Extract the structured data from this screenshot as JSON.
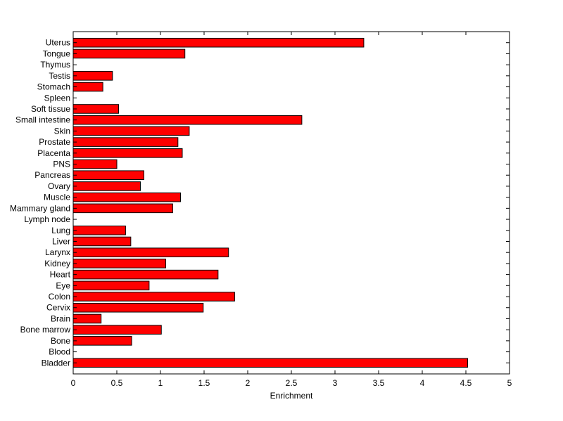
{
  "chart_data": {
    "type": "bar",
    "orientation": "horizontal",
    "title": "",
    "xlabel": "Enrichment",
    "ylabel": "",
    "xlim": [
      0,
      5
    ],
    "xticks": [
      "0",
      "0.5",
      "1",
      "1.5",
      "2",
      "2.5",
      "3",
      "3.5",
      "4",
      "4.5",
      "5"
    ],
    "bar_color": "#ff0000",
    "edge_color": "#000000",
    "grid": false,
    "categories": [
      "Bladder",
      "Blood",
      "Bone",
      "Bone marrow",
      "Brain",
      "Cervix",
      "Colon",
      "Eye",
      "Heart",
      "Kidney",
      "Larynx",
      "Liver",
      "Lung",
      "Lymph node",
      "Mammary gland",
      "Muscle",
      "Ovary",
      "Pancreas",
      "PNS",
      "Placenta",
      "Prostate",
      "Skin",
      "Small intestine",
      "Soft tissue",
      "Spleen",
      "Stomach",
      "Testis",
      "Thymus",
      "Tongue",
      "Uterus"
    ],
    "values": [
      4.52,
      0,
      0.67,
      1.01,
      0.32,
      1.49,
      1.85,
      0.87,
      1.66,
      1.06,
      1.78,
      0.66,
      0.6,
      0,
      1.14,
      1.23,
      0.77,
      0.81,
      0.5,
      1.25,
      1.2,
      1.33,
      2.62,
      0.52,
      0,
      0.34,
      0.45,
      0,
      1.28,
      3.33
    ]
  }
}
